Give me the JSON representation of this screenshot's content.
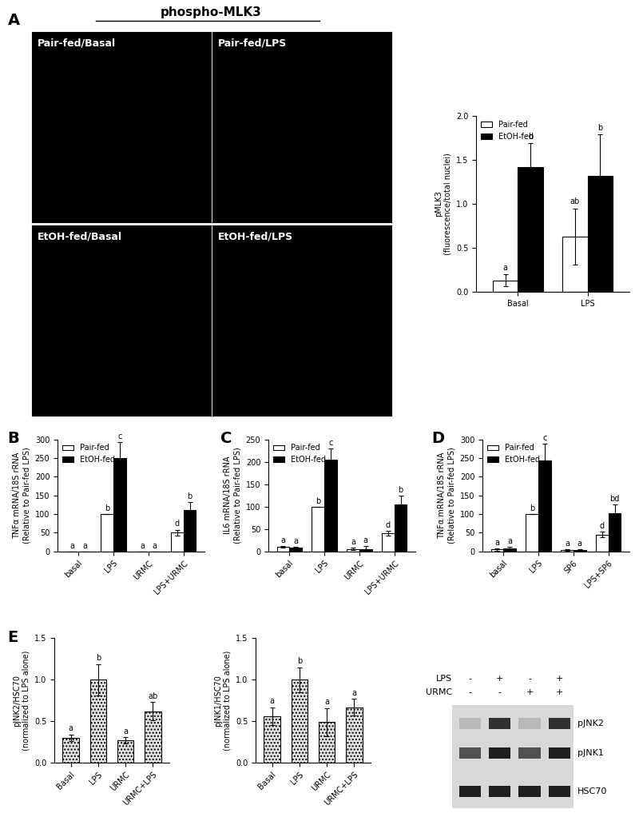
{
  "panels": [
    "A",
    "B",
    "C",
    "D",
    "E"
  ],
  "images": {
    "header": "phospho-MLK3",
    "labels": [
      "Pair-fed/Basal",
      "Pair-fed/LPS",
      "EtOH-fed/Basal",
      "EtOH-fed/LPS"
    ]
  },
  "chart_data": [
    {
      "type": "bar",
      "ylabel": "pMLK3\n(fluorescence/total nuclei)",
      "categories": [
        "Basal",
        "LPS"
      ],
      "series": [
        {
          "name": "Pair-fed",
          "color": "#ffffff",
          "values": [
            0.13,
            0.63
          ],
          "errors": [
            0.07,
            0.32
          ],
          "letters": [
            "a",
            "ab"
          ]
        },
        {
          "name": "EtOH-fed",
          "color": "#000000",
          "values": [
            1.42,
            1.32
          ],
          "errors": [
            0.27,
            0.47
          ],
          "letters": [
            "b",
            "b"
          ]
        }
      ],
      "ylim": [
        0,
        2.0
      ],
      "yticks": [
        {
          "value": 0,
          "label": "0.0"
        },
        {
          "value": 0.5,
          "label": "0.5"
        },
        {
          "value": 1.0,
          "label": "1.0"
        },
        {
          "value": 1.5,
          "label": "1.5"
        },
        {
          "value": 2.0,
          "label": "2.0"
        }
      ],
      "legend": "upper left"
    },
    {
      "type": "bar",
      "ylabel": "TNFα mRNA/18S rRNA\n(Relative to Pair-fed LPS)",
      "categories": [
        "basal",
        "LPS",
        "URMC",
        "LPS+URMC"
      ],
      "series": [
        {
          "name": "Pair-fed",
          "color": "#ffffff",
          "values": [
            0,
            100,
            0,
            50
          ],
          "errors": [
            0,
            0,
            0,
            8
          ],
          "letters": [
            "a",
            "b",
            "a",
            "d"
          ]
        },
        {
          "name": "EtOH-fed",
          "color": "#000000",
          "values": [
            0,
            250,
            0,
            110
          ],
          "errors": [
            0,
            43,
            0,
            22
          ],
          "letters": [
            "a",
            "c",
            "a",
            "b"
          ]
        }
      ],
      "ylim": [
        0,
        300
      ],
      "yticks": [
        0,
        50,
        100,
        150,
        200,
        250,
        300
      ],
      "legend": "upper left"
    },
    {
      "type": "bar",
      "ylabel": "IL6 mRNA/18S rRNA\n(Relative to Pair-fed LPS)",
      "categories": [
        "basal",
        "LPS",
        "URMC",
        "LPS+URMC"
      ],
      "series": [
        {
          "name": "Pair-fed",
          "color": "#ffffff",
          "values": [
            10,
            100,
            5,
            40
          ],
          "errors": [
            2,
            0,
            3,
            5
          ],
          "letters": [
            "a",
            "b",
            "a",
            "d"
          ]
        },
        {
          "name": "EtOH-fed",
          "color": "#000000",
          "values": [
            8,
            205,
            5,
            105
          ],
          "errors": [
            2,
            25,
            6,
            20
          ],
          "letters": [
            "a",
            "c",
            "a",
            "b"
          ]
        }
      ],
      "ylim": [
        0,
        250
      ],
      "yticks": [
        0,
        50,
        100,
        150,
        200,
        250
      ],
      "legend": "upper left"
    },
    {
      "type": "bar",
      "ylabel": "TNFα mRNA/18S rRNA\n(Relative to Pair-fed LPS)",
      "categories": [
        "basal",
        "LPS",
        "SP6",
        "LPS+SP6"
      ],
      "series": [
        {
          "name": "Pair-fed",
          "color": "#ffffff",
          "values": [
            5,
            100,
            3,
            45
          ],
          "errors": [
            3,
            0,
            2,
            7
          ],
          "letters": [
            "a",
            "b",
            "a",
            "d"
          ]
        },
        {
          "name": "EtOH-fed",
          "color": "#000000",
          "values": [
            7,
            243,
            3,
            103
          ],
          "errors": [
            5,
            45,
            2,
            22
          ],
          "letters": [
            "a",
            "c",
            "a",
            "bd"
          ]
        }
      ],
      "ylim": [
        0,
        300
      ],
      "yticks": [
        0,
        50,
        100,
        150,
        200,
        250,
        300
      ],
      "legend": "upper left"
    },
    {
      "type": "bar",
      "ylabel": "pJNK2/HSC70\n(normalized to LPS alone)",
      "categories": [
        "Basal",
        "LPS",
        "URMC",
        "URMC+LPS"
      ],
      "color": "#e0e0e0",
      "values": [
        0.3,
        1.0,
        0.27,
        0.62
      ],
      "errors": [
        0.04,
        0.19,
        0.04,
        0.11
      ],
      "letters": [
        "a",
        "b",
        "a",
        "ab"
      ],
      "ylim": [
        0,
        1.5
      ],
      "yticks": [
        {
          "value": 0,
          "label": "0.0"
        },
        {
          "value": 0.5,
          "label": "0.5"
        },
        {
          "value": 1.0,
          "label": "1.0"
        },
        {
          "value": 1.5,
          "label": "1.5"
        }
      ]
    },
    {
      "type": "bar",
      "ylabel": "pJNK1/HSC70\n(normalized to LPS alone)",
      "categories": [
        "Basal",
        "LPS",
        "URMC",
        "URMC+LPS"
      ],
      "color": "#e0e0e0",
      "values": [
        0.56,
        1.0,
        0.49,
        0.67
      ],
      "errors": [
        0.11,
        0.15,
        0.17,
        0.1
      ],
      "letters": [
        "a",
        "b",
        "a",
        "a"
      ],
      "ylim": [
        0,
        1.5
      ],
      "yticks": [
        {
          "value": 0,
          "label": "0.0"
        },
        {
          "value": 0.5,
          "label": "0.5"
        },
        {
          "value": 1.0,
          "label": "1.0"
        },
        {
          "value": 1.5,
          "label": "1.5"
        }
      ]
    }
  ],
  "blot": {
    "conditions": [
      {
        "label": "LPS",
        "signs": [
          "-",
          "+",
          "-",
          "+"
        ]
      },
      {
        "label": "URMC",
        "signs": [
          "-",
          "-",
          "+",
          "+"
        ]
      }
    ],
    "bands": [
      "pJNK2",
      "pJNK1",
      "HSC70"
    ]
  }
}
